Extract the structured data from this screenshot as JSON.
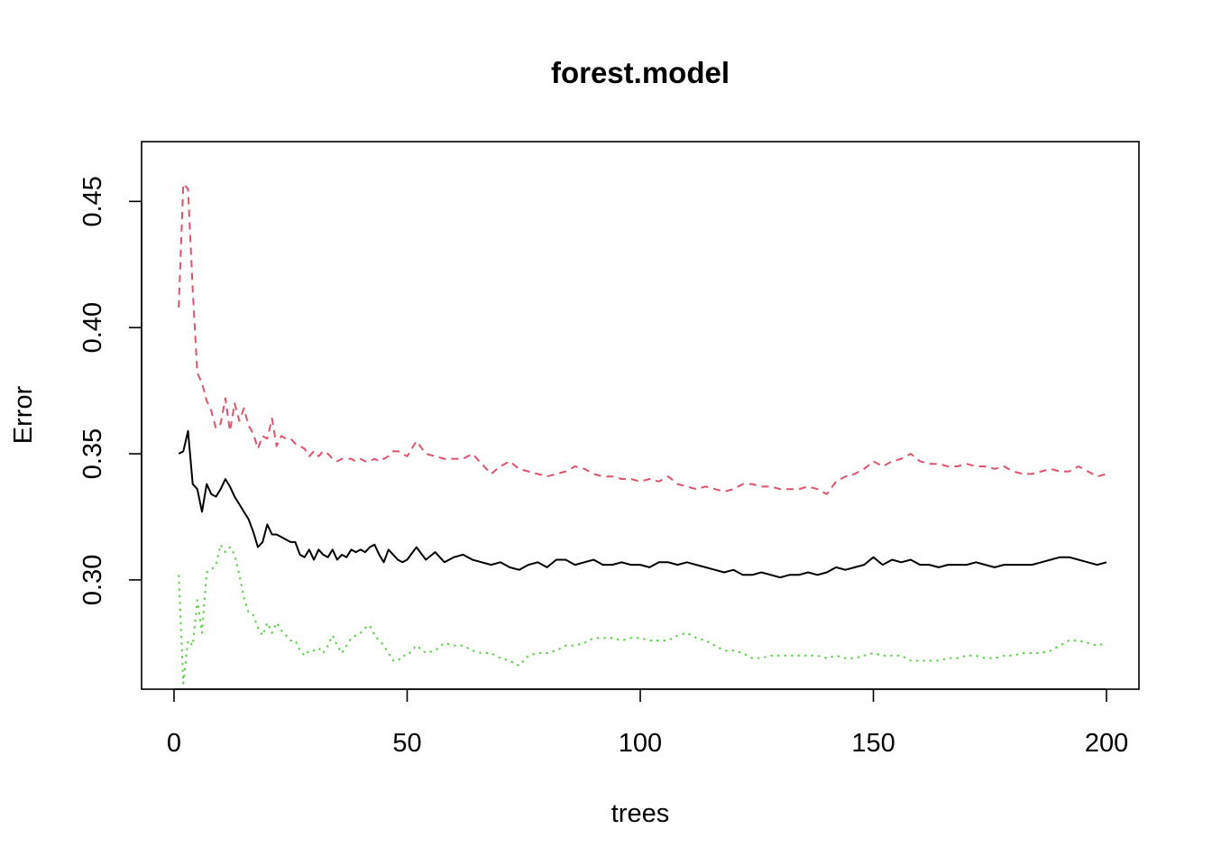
{
  "chart_data": {
    "type": "line",
    "title": "forest.model",
    "xlabel": "trees",
    "ylabel": "Error",
    "xlim": [
      -6.96,
      206.96
    ],
    "ylim": [
      0.2567,
      0.4737
    ],
    "xticks": [
      0,
      50,
      100,
      150,
      200
    ],
    "xtick_labels": [
      "0",
      "50",
      "100",
      "150",
      "200"
    ],
    "yticks": [
      0.3,
      0.35,
      0.4,
      0.45
    ],
    "ytick_labels": [
      "0.30",
      "0.35",
      "0.40",
      "0.45"
    ],
    "grid": false,
    "legend": "none",
    "series": [
      {
        "style": "solid",
        "color": "#000000",
        "x": [
          1,
          2,
          3,
          4,
          5,
          6,
          7,
          8,
          9,
          10,
          11,
          12,
          13,
          14,
          15,
          16,
          17,
          18,
          19,
          20,
          21,
          22,
          23,
          24,
          25,
          26,
          27,
          28,
          29,
          30,
          31,
          32,
          33,
          34,
          35,
          36,
          37,
          38,
          39,
          40,
          41,
          42,
          43,
          44,
          45,
          46,
          47,
          48,
          49,
          50,
          52,
          54,
          56,
          58,
          60,
          62,
          64,
          66,
          68,
          70,
          72,
          74,
          76,
          78,
          80,
          82,
          84,
          86,
          88,
          90,
          92,
          94,
          96,
          98,
          100,
          102,
          104,
          106,
          108,
          110,
          112,
          114,
          116,
          118,
          120,
          122,
          124,
          126,
          128,
          130,
          132,
          134,
          136,
          138,
          140,
          142,
          144,
          146,
          148,
          150,
          152,
          154,
          156,
          158,
          160,
          162,
          164,
          166,
          168,
          170,
          172,
          174,
          176,
          178,
          180,
          182,
          184,
          186,
          188,
          190,
          192,
          194,
          196,
          198,
          200
        ],
        "y": [
          0.35,
          0.351,
          0.359,
          0.338,
          0.336,
          0.327,
          0.338,
          0.334,
          0.333,
          0.336,
          0.34,
          0.337,
          0.333,
          0.33,
          0.327,
          0.324,
          0.319,
          0.313,
          0.315,
          0.322,
          0.318,
          0.318,
          0.317,
          0.316,
          0.315,
          0.315,
          0.31,
          0.309,
          0.312,
          0.308,
          0.312,
          0.31,
          0.309,
          0.312,
          0.308,
          0.31,
          0.309,
          0.312,
          0.311,
          0.312,
          0.311,
          0.313,
          0.314,
          0.31,
          0.307,
          0.312,
          0.31,
          0.308,
          0.307,
          0.308,
          0.313,
          0.308,
          0.311,
          0.307,
          0.309,
          0.31,
          0.308,
          0.307,
          0.306,
          0.307,
          0.305,
          0.304,
          0.306,
          0.307,
          0.305,
          0.308,
          0.308,
          0.306,
          0.307,
          0.308,
          0.306,
          0.306,
          0.307,
          0.306,
          0.306,
          0.305,
          0.307,
          0.307,
          0.306,
          0.307,
          0.306,
          0.305,
          0.304,
          0.303,
          0.304,
          0.302,
          0.302,
          0.303,
          0.302,
          0.301,
          0.302,
          0.302,
          0.303,
          0.302,
          0.303,
          0.305,
          0.304,
          0.305,
          0.306,
          0.309,
          0.306,
          0.308,
          0.307,
          0.308,
          0.306,
          0.306,
          0.305,
          0.306,
          0.306,
          0.306,
          0.307,
          0.306,
          0.305,
          0.306,
          0.306,
          0.306,
          0.306,
          0.307,
          0.308,
          0.309,
          0.309,
          0.308,
          0.307,
          0.306,
          0.307
        ]
      },
      {
        "style": "dashed",
        "color": "#DF536B",
        "x": [
          1,
          2,
          3,
          4,
          5,
          6,
          7,
          8,
          9,
          10,
          11,
          12,
          13,
          14,
          15,
          16,
          17,
          18,
          19,
          20,
          21,
          22,
          23,
          24,
          25,
          26,
          27,
          28,
          29,
          30,
          31,
          32,
          33,
          34,
          35,
          36,
          37,
          38,
          39,
          40,
          41,
          42,
          43,
          44,
          45,
          46,
          47,
          48,
          49,
          50,
          52,
          54,
          56,
          58,
          60,
          62,
          64,
          66,
          68,
          70,
          72,
          74,
          76,
          78,
          80,
          82,
          84,
          86,
          88,
          90,
          92,
          94,
          96,
          98,
          100,
          102,
          104,
          106,
          108,
          110,
          112,
          114,
          116,
          118,
          120,
          122,
          124,
          126,
          128,
          130,
          132,
          134,
          136,
          138,
          140,
          142,
          144,
          146,
          148,
          150,
          152,
          154,
          156,
          158,
          160,
          162,
          164,
          166,
          168,
          170,
          172,
          174,
          176,
          178,
          180,
          182,
          184,
          186,
          188,
          190,
          192,
          194,
          196,
          198,
          200
        ],
        "y": [
          0.408,
          0.457,
          0.455,
          0.415,
          0.382,
          0.378,
          0.371,
          0.367,
          0.36,
          0.362,
          0.372,
          0.359,
          0.37,
          0.363,
          0.368,
          0.361,
          0.358,
          0.352,
          0.357,
          0.356,
          0.364,
          0.353,
          0.357,
          0.356,
          0.356,
          0.354,
          0.353,
          0.352,
          0.349,
          0.351,
          0.349,
          0.351,
          0.35,
          0.348,
          0.347,
          0.348,
          0.348,
          0.348,
          0.347,
          0.348,
          0.347,
          0.347,
          0.348,
          0.347,
          0.348,
          0.349,
          0.351,
          0.351,
          0.35,
          0.349,
          0.355,
          0.35,
          0.349,
          0.348,
          0.348,
          0.348,
          0.35,
          0.346,
          0.342,
          0.345,
          0.347,
          0.344,
          0.343,
          0.342,
          0.341,
          0.342,
          0.343,
          0.345,
          0.344,
          0.342,
          0.341,
          0.341,
          0.34,
          0.34,
          0.339,
          0.34,
          0.339,
          0.341,
          0.338,
          0.337,
          0.336,
          0.337,
          0.336,
          0.335,
          0.336,
          0.338,
          0.338,
          0.337,
          0.337,
          0.336,
          0.336,
          0.336,
          0.337,
          0.336,
          0.334,
          0.339,
          0.341,
          0.342,
          0.344,
          0.347,
          0.345,
          0.347,
          0.348,
          0.35,
          0.347,
          0.346,
          0.346,
          0.345,
          0.345,
          0.346,
          0.345,
          0.345,
          0.344,
          0.345,
          0.343,
          0.342,
          0.342,
          0.343,
          0.344,
          0.343,
          0.343,
          0.345,
          0.343,
          0.341,
          0.342
        ]
      },
      {
        "style": "dotted",
        "color": "#61D04F",
        "x": [
          1,
          2,
          3,
          4,
          5,
          6,
          7,
          8,
          9,
          10,
          11,
          12,
          13,
          14,
          15,
          16,
          17,
          18,
          19,
          20,
          21,
          22,
          23,
          24,
          25,
          26,
          27,
          28,
          29,
          30,
          31,
          32,
          33,
          34,
          35,
          36,
          37,
          38,
          39,
          40,
          41,
          42,
          43,
          44,
          45,
          46,
          47,
          48,
          49,
          50,
          52,
          54,
          56,
          58,
          60,
          62,
          64,
          66,
          68,
          70,
          72,
          74,
          76,
          78,
          80,
          82,
          84,
          86,
          88,
          90,
          92,
          94,
          96,
          98,
          100,
          102,
          104,
          106,
          108,
          110,
          112,
          114,
          116,
          118,
          120,
          122,
          124,
          126,
          128,
          130,
          132,
          134,
          136,
          138,
          140,
          142,
          144,
          146,
          148,
          150,
          152,
          154,
          156,
          158,
          160,
          162,
          164,
          166,
          168,
          170,
          172,
          174,
          176,
          178,
          180,
          182,
          184,
          186,
          188,
          190,
          192,
          194,
          196,
          198,
          200
        ],
        "y": [
          0.302,
          0.259,
          0.276,
          0.274,
          0.292,
          0.279,
          0.303,
          0.304,
          0.306,
          0.314,
          0.311,
          0.313,
          0.31,
          0.302,
          0.293,
          0.287,
          0.286,
          0.281,
          0.278,
          0.283,
          0.279,
          0.283,
          0.28,
          0.278,
          0.276,
          0.276,
          0.272,
          0.27,
          0.272,
          0.272,
          0.273,
          0.271,
          0.274,
          0.278,
          0.274,
          0.271,
          0.274,
          0.277,
          0.278,
          0.279,
          0.281,
          0.282,
          0.278,
          0.276,
          0.274,
          0.271,
          0.268,
          0.268,
          0.27,
          0.27,
          0.274,
          0.271,
          0.272,
          0.275,
          0.274,
          0.274,
          0.272,
          0.271,
          0.271,
          0.269,
          0.268,
          0.266,
          0.27,
          0.271,
          0.271,
          0.272,
          0.274,
          0.274,
          0.275,
          0.277,
          0.277,
          0.277,
          0.276,
          0.277,
          0.277,
          0.276,
          0.276,
          0.276,
          0.278,
          0.279,
          0.277,
          0.276,
          0.274,
          0.272,
          0.272,
          0.271,
          0.269,
          0.269,
          0.27,
          0.27,
          0.27,
          0.27,
          0.27,
          0.27,
          0.269,
          0.27,
          0.269,
          0.269,
          0.27,
          0.271,
          0.27,
          0.27,
          0.27,
          0.268,
          0.268,
          0.268,
          0.268,
          0.269,
          0.269,
          0.27,
          0.27,
          0.269,
          0.269,
          0.27,
          0.27,
          0.271,
          0.271,
          0.271,
          0.272,
          0.274,
          0.276,
          0.276,
          0.275,
          0.274,
          0.275
        ]
      }
    ]
  }
}
